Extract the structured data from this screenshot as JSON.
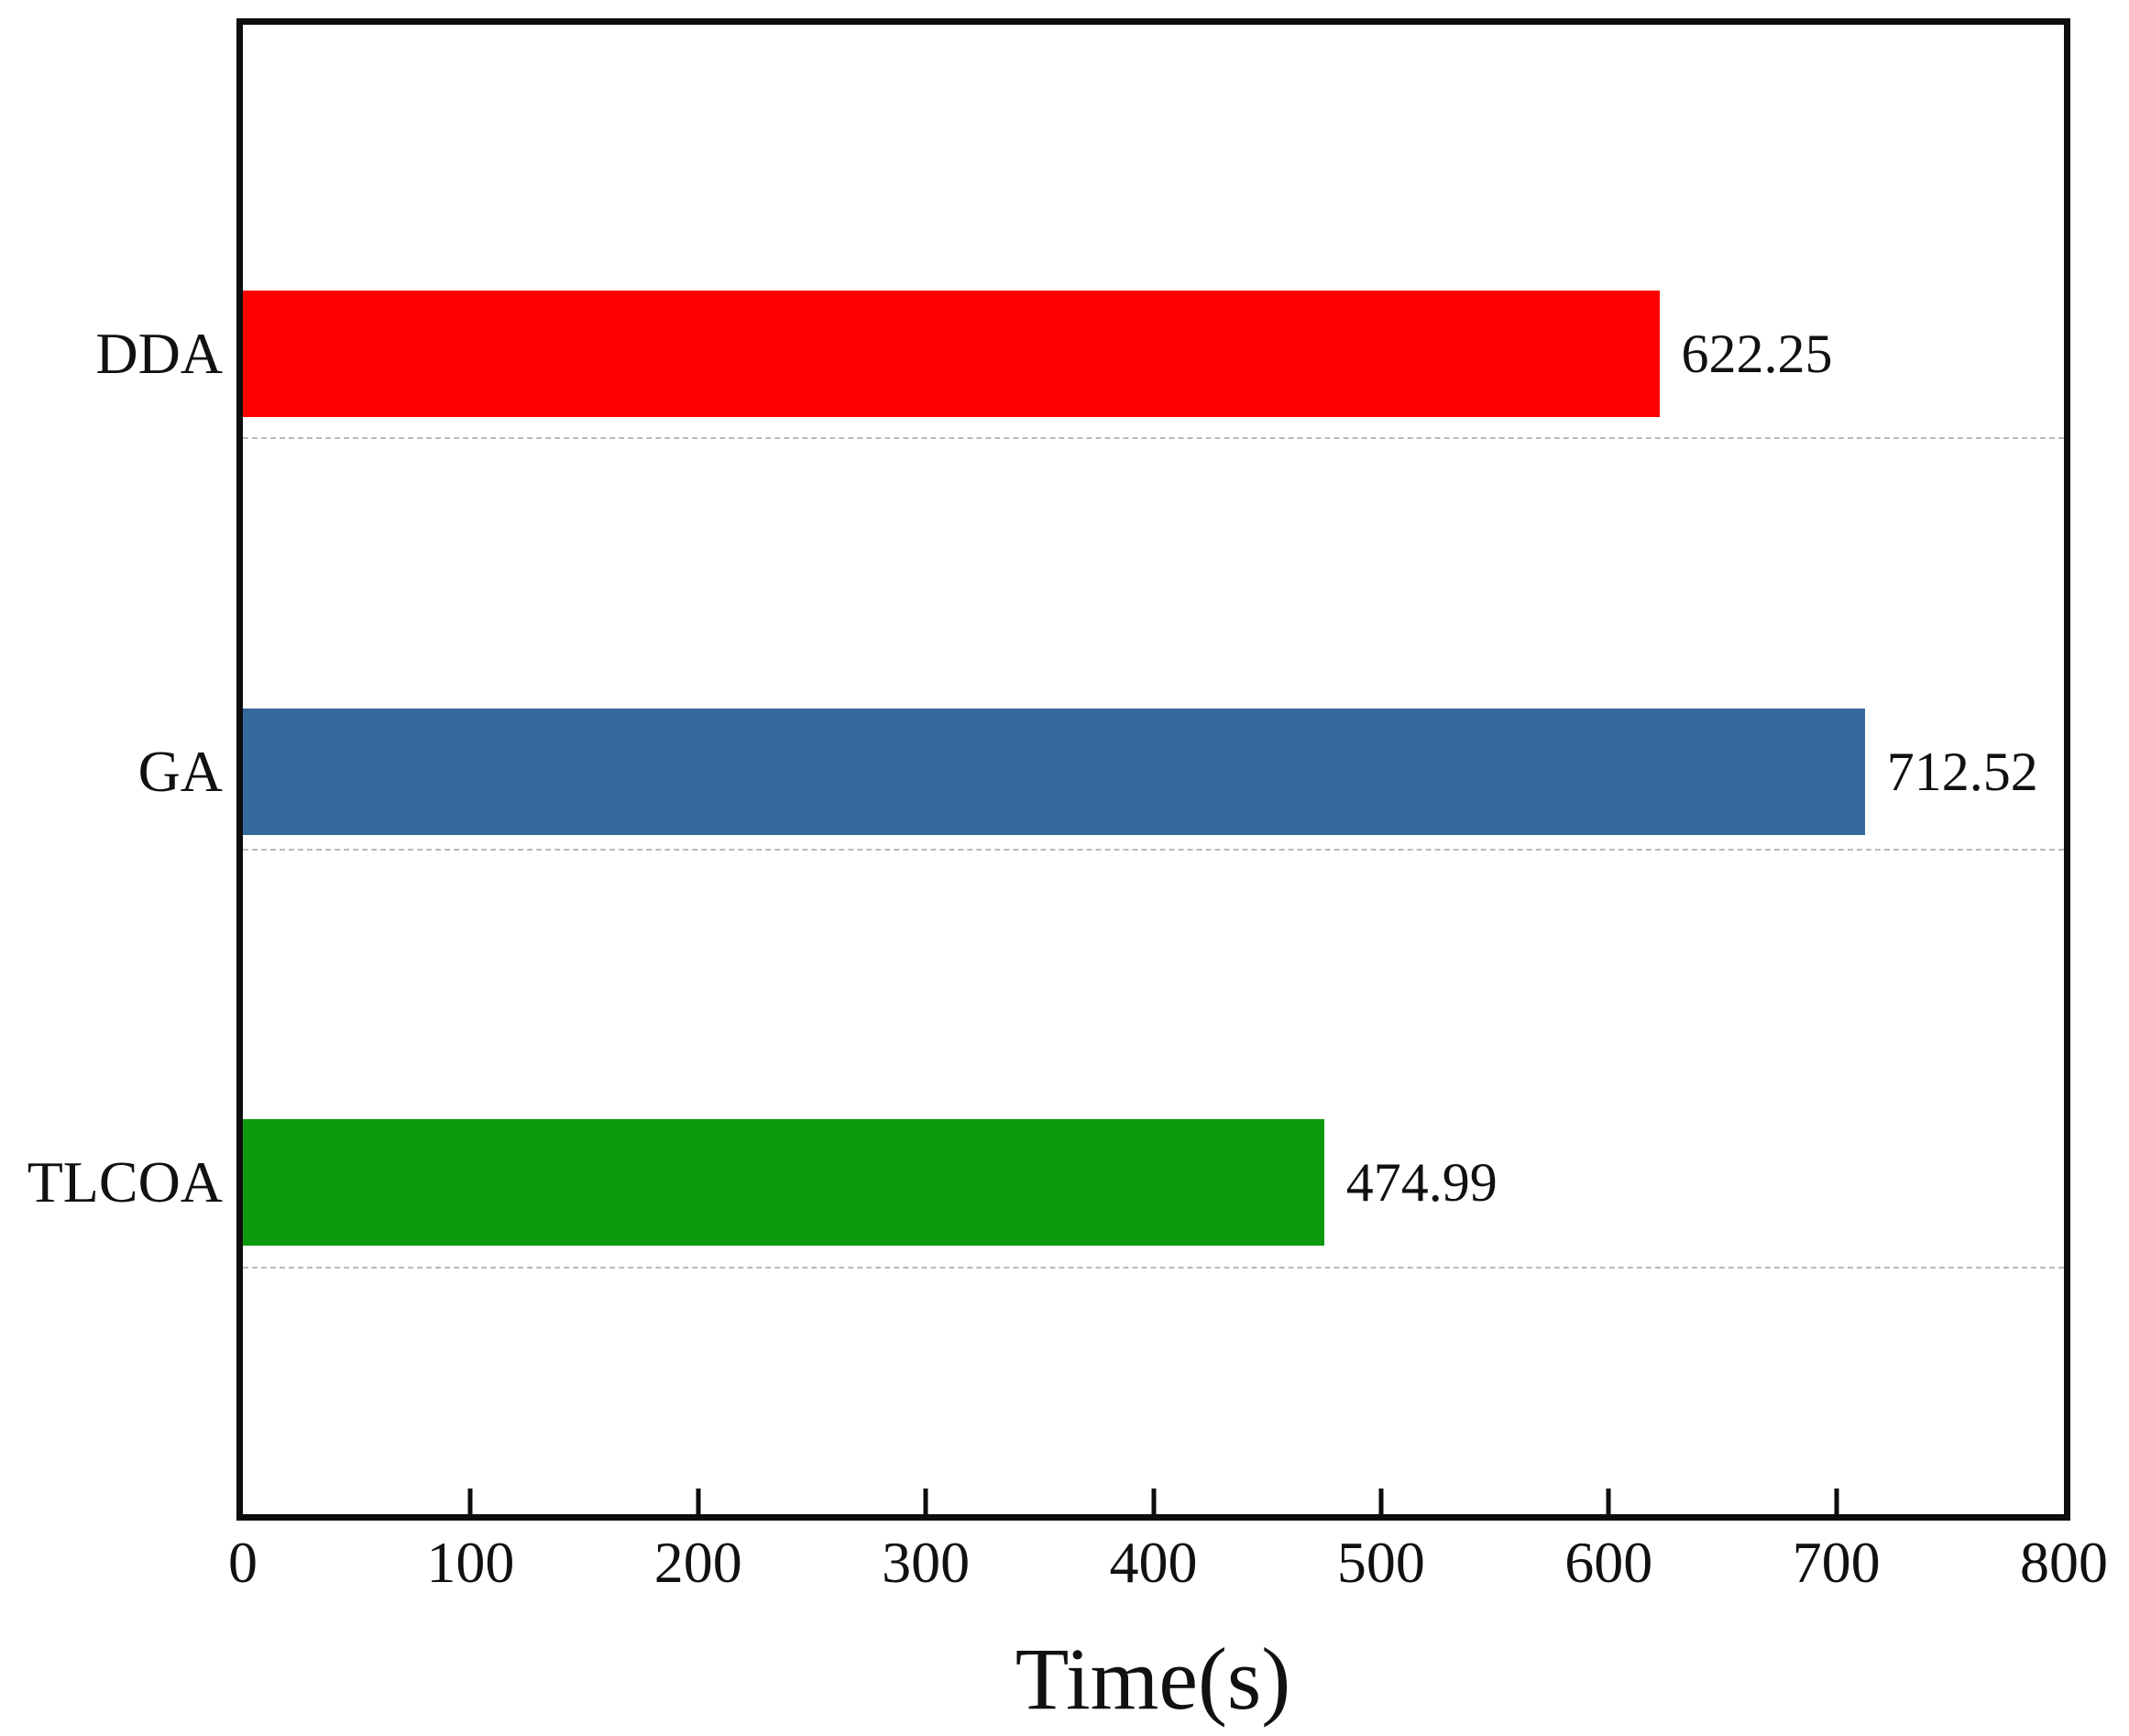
{
  "chart_data": {
    "type": "bar",
    "orientation": "horizontal",
    "title": "",
    "xlabel": "Time(s)",
    "ylabel": "",
    "xlim": [
      0,
      800
    ],
    "x_ticks": [
      0,
      100,
      200,
      300,
      400,
      500,
      600,
      700,
      800
    ],
    "categories": [
      "DDA",
      "GA",
      "TLCOA"
    ],
    "values": [
      622.25,
      712.52,
      474.99
    ],
    "value_labels": [
      "622.25",
      "712.52",
      "474.99"
    ],
    "series": [
      {
        "name": "DDA",
        "value": 622.25,
        "label": "622.25",
        "color": "#fe0000"
      },
      {
        "name": "GA",
        "value": 712.52,
        "label": "712.52",
        "color": "#35689b"
      },
      {
        "name": "TLCOA",
        "value": 474.99,
        "label": "474.99",
        "color": "#0c9a0c"
      }
    ],
    "grid": "horizontal-dashed-below-each-bar",
    "legend": "none"
  },
  "colors": {
    "background": "#ffffff",
    "frame": "#0d0d0d",
    "grid_line": "#b9b9b9",
    "text": "#111111",
    "bar_red": "#fe0000",
    "bar_blue": "#35689b",
    "bar_green": "#0c9a0c"
  }
}
